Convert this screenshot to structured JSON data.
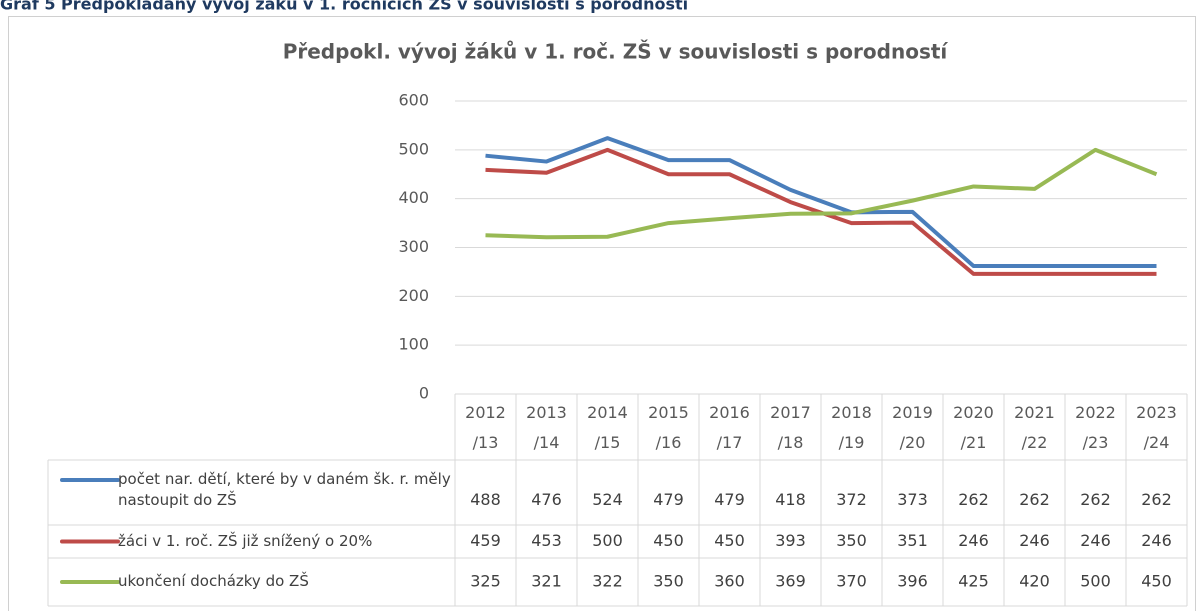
{
  "caption": "Graf 5 Předpokládaný vývoj žáků v 1. ročnících ZŠ v souvislosti s porodností",
  "chart_data": {
    "type": "line",
    "title": "Předpokl. vývoj žáků v 1. roč. ZŠ v souvislosti s porodností",
    "categories": [
      "2012/13",
      "2013/14",
      "2014/15",
      "2015/16",
      "2016/17",
      "2017/18",
      "2018/19",
      "2019/20",
      "2020/21",
      "2021/22",
      "2022/23",
      "2023/24"
    ],
    "series": [
      {
        "name": "počet nar. dětí, které by v daném šk. r. měly nastoupit do ZŠ",
        "color": "#4a7ebb",
        "values": [
          488,
          476,
          524,
          479,
          479,
          418,
          372,
          373,
          262,
          262,
          262,
          262
        ]
      },
      {
        "name": "žáci v 1. roč. ZŠ již snížený o 20%",
        "color": "#be4b48",
        "values": [
          459,
          453,
          500,
          450,
          450,
          393,
          350,
          351,
          246,
          246,
          246,
          246
        ]
      },
      {
        "name": "ukončení docházky do ZŠ",
        "color": "#98b954",
        "values": [
          325,
          321,
          322,
          350,
          360,
          369,
          370,
          396,
          425,
          420,
          500,
          450
        ]
      }
    ],
    "ylim": [
      0,
      600
    ],
    "yticks": [
      0,
      100,
      200,
      300,
      400,
      500,
      600
    ],
    "grid": true
  }
}
